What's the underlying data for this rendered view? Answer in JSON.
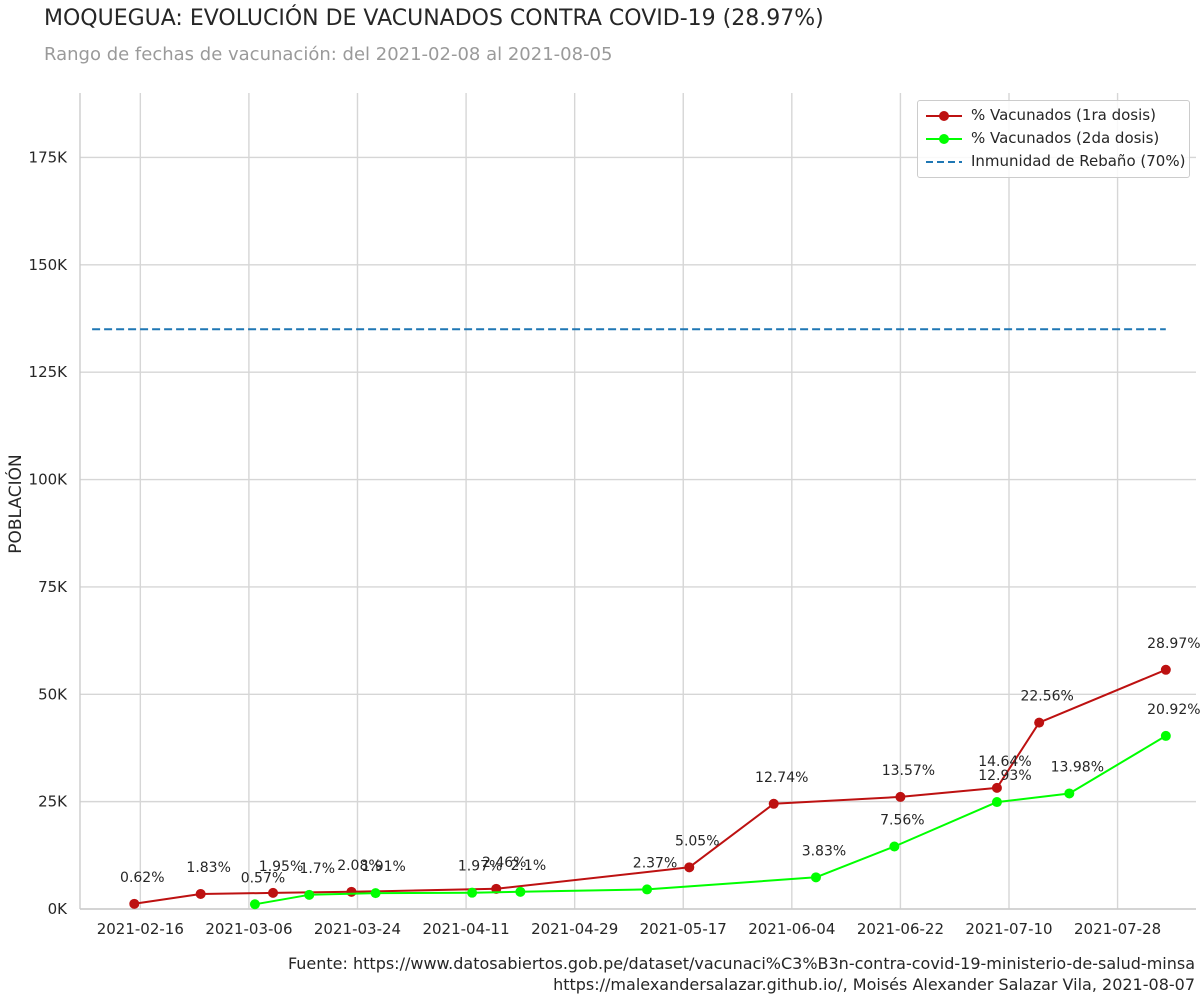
{
  "chart_data": {
    "type": "line",
    "title": "MOQUEGUA: EVOLUCIÓN DE VACUNADOS CONTRA COVID-19 (28.97%)",
    "subtitle": "Rango de fechas de vacunación: del 2021-02-08 al 2021-08-05",
    "xlabel": "",
    "ylabel": "POBLACIÓN",
    "x_ticks": [
      "2021-02-16",
      "2021-03-06",
      "2021-03-24",
      "2021-04-11",
      "2021-04-29",
      "2021-05-17",
      "2021-06-04",
      "2021-06-22",
      "2021-07-10",
      "2021-07-28"
    ],
    "y_ticks": [
      "0K",
      "25K",
      "50K",
      "75K",
      "100K",
      "125K",
      "150K",
      "175K"
    ],
    "ylim": [
      0,
      190000
    ],
    "xlim": [
      "2021-02-06",
      "2021-08-10"
    ],
    "grid": true,
    "legend_position": "top-right",
    "series": [
      {
        "name": "% Vacunados (1ra dosis)",
        "color": "#bd1111",
        "marker": "circle",
        "points": [
          {
            "x": "2021-02-15",
            "y": 1200,
            "label": "0.62%"
          },
          {
            "x": "2021-02-26",
            "y": 3500,
            "label": "1.83%"
          },
          {
            "x": "2021-03-10",
            "y": 3750,
            "label": "1.95%"
          },
          {
            "x": "2021-03-23",
            "y": 4000,
            "label": "2.08%"
          },
          {
            "x": "2021-04-16",
            "y": 4700,
            "label": "2.46%"
          },
          {
            "x": "2021-05-18",
            "y": 9700,
            "label": "5.05%"
          },
          {
            "x": "2021-06-01",
            "y": 24500,
            "label": "12.74%"
          },
          {
            "x": "2021-06-22",
            "y": 26100,
            "label": "13.57%"
          },
          {
            "x": "2021-07-08",
            "y": 28200,
            "label": "14.64%"
          },
          {
            "x": "2021-07-15",
            "y": 43400,
            "label": "22.56%"
          },
          {
            "x": "2021-08-05",
            "y": 55700,
            "label": "28.97%"
          }
        ]
      },
      {
        "name": "% Vacunados (2da dosis)",
        "color": "#00ff00",
        "marker": "circle",
        "points": [
          {
            "x": "2021-03-07",
            "y": 1100,
            "label": "0.57%"
          },
          {
            "x": "2021-03-16",
            "y": 3300,
            "label": "1.7%"
          },
          {
            "x": "2021-03-27",
            "y": 3700,
            "label": "1.91%"
          },
          {
            "x": "2021-04-12",
            "y": 3800,
            "label": "1.97%"
          },
          {
            "x": "2021-04-20",
            "y": 4000,
            "label": "2.1%"
          },
          {
            "x": "2021-05-11",
            "y": 4560,
            "label": "2.37%"
          },
          {
            "x": "2021-06-08",
            "y": 7370,
            "label": "3.83%"
          },
          {
            "x": "2021-06-21",
            "y": 14550,
            "label": "7.56%"
          },
          {
            "x": "2021-07-08",
            "y": 24900,
            "label": "12.93%"
          },
          {
            "x": "2021-07-20",
            "y": 26900,
            "label": "13.98%"
          },
          {
            "x": "2021-08-05",
            "y": 40300,
            "label": "20.92%"
          }
        ]
      },
      {
        "name": "Inmunidad de Rebaño (70%)",
        "color": "#1f77b4",
        "style": "dashed",
        "points": [
          {
            "x": "2021-02-08",
            "y": 135000
          },
          {
            "x": "2021-08-05",
            "y": 135000
          }
        ]
      }
    ],
    "source_lines": [
      "Fuente: https://www.datosabiertos.gob.pe/dataset/vacunaci%C3%B3n-contra-covid-19-ministerio-de-salud-minsa",
      "https://malexandersalazar.github.io/, Moisés Alexander Salazar Vila, 2021-08-07"
    ]
  }
}
